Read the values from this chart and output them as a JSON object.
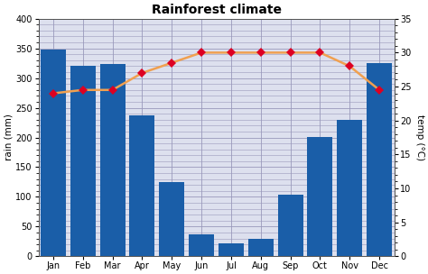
{
  "title": "Rainforest climate",
  "months": [
    "Jan",
    "Feb",
    "Mar",
    "Apr",
    "May",
    "Jun",
    "Jul",
    "Aug",
    "Sep",
    "Oct",
    "Nov",
    "Dec"
  ],
  "rain_mm": [
    348,
    320,
    323,
    237,
    125,
    37,
    22,
    30,
    103,
    201,
    230,
    325
  ],
  "temp_c": [
    24,
    24.5,
    24.5,
    27,
    28.5,
    30,
    30,
    30,
    30,
    30,
    28,
    24.5
  ],
  "bar_color": "#1a5ea8",
  "line_color": "#f0a050",
  "marker_color": "#dd0022",
  "ylabel_left": "rain (mm)",
  "ylabel_right": "temp (°C)",
  "ylim_rain": [
    0,
    400
  ],
  "ylim_temp": [
    0,
    35
  ],
  "yticks_rain": [
    0,
    50,
    100,
    150,
    200,
    250,
    300,
    350,
    400
  ],
  "yticks_temp": [
    0,
    5,
    10,
    15,
    20,
    25,
    30,
    35
  ],
  "grid_color": "#9999bb",
  "bg_color": "#dde0ee"
}
